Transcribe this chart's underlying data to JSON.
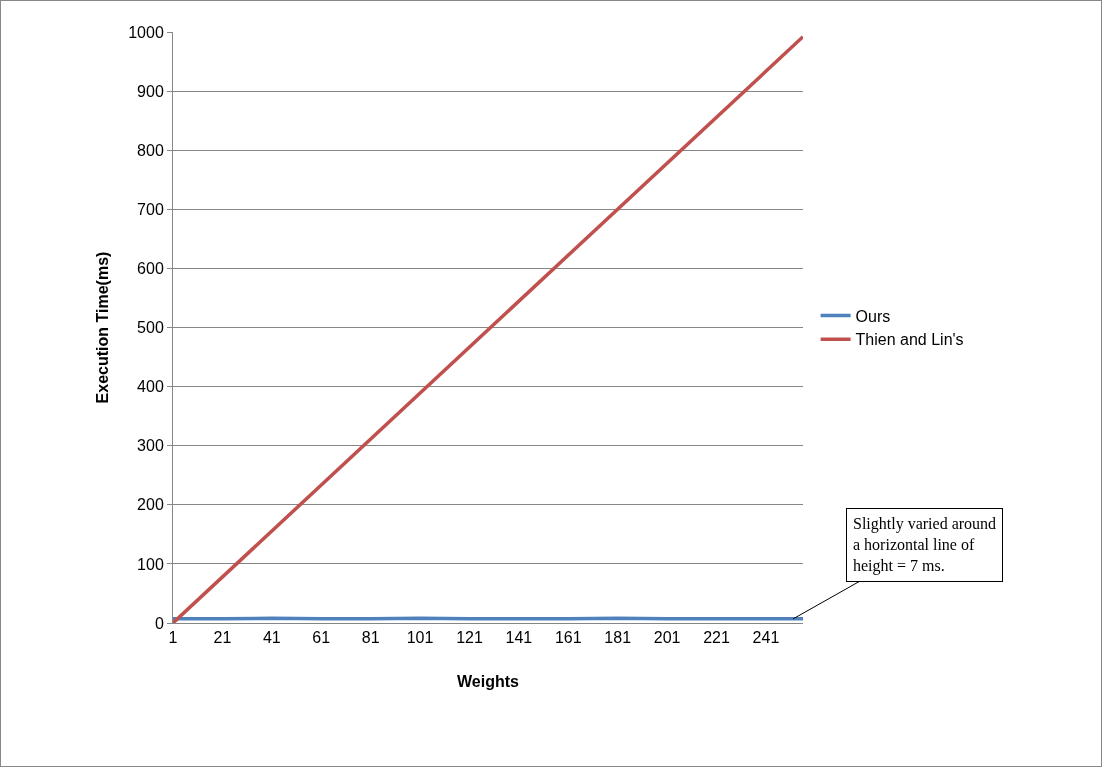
{
  "chart_data": {
    "type": "line",
    "xlabel": "Weights",
    "ylabel": "Execution Time(ms)",
    "x": [
      1,
      21,
      41,
      61,
      81,
      101,
      121,
      141,
      161,
      181,
      201,
      221,
      241,
      256
    ],
    "series": [
      {
        "name": "Ours",
        "color": "#4f81bd",
        "values": [
          7,
          7,
          8,
          7,
          7,
          8,
          7,
          7,
          7,
          8,
          7,
          7,
          7,
          7
        ]
      },
      {
        "name": "Thien and Lin's",
        "color": "#c0504d",
        "x": [
          1,
          256
        ],
        "values": [
          0,
          992
        ]
      }
    ],
    "xlim": [
      1,
      256
    ],
    "xticks": [
      1,
      21,
      41,
      61,
      81,
      101,
      121,
      141,
      161,
      181,
      201,
      221,
      241
    ],
    "ylim": [
      0,
      1000
    ],
    "yticks": [
      0,
      100,
      200,
      300,
      400,
      500,
      600,
      700,
      800,
      900,
      1000
    ],
    "grid": "y",
    "legend": "right",
    "marker": "none",
    "line_style": "solid",
    "annotations": [
      {
        "text": "Slightly varied around a horizontal line of height = 7 ms.",
        "x": 252,
        "y": 7
      }
    ]
  }
}
